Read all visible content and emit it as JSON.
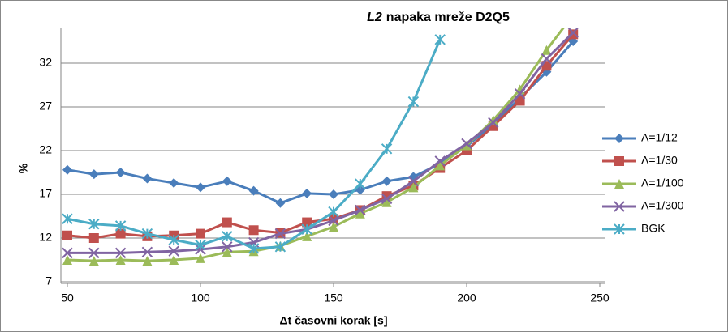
{
  "chart_data": {
    "type": "line",
    "title": [
      "L2",
      "napaka mreže D2Q5"
    ],
    "xlabel": "Δt časovni korak [s]",
    "ylabel": "%",
    "x": [
      50,
      60,
      70,
      80,
      90,
      100,
      110,
      120,
      130,
      140,
      150,
      160,
      170,
      180,
      190,
      200,
      210,
      220,
      230,
      240
    ],
    "series": [
      {
        "name": "Λ=1/12",
        "color": "#4a7ebb",
        "marker": "diamond",
        "values": [
          19.8,
          19.3,
          19.5,
          18.8,
          18.3,
          17.8,
          18.5,
          17.4,
          16.0,
          17.1,
          17.0,
          17.5,
          18.5,
          19.0,
          20.5,
          22.5,
          25.0,
          28.0,
          31.0,
          34.5
        ]
      },
      {
        "name": "Λ=1/30",
        "color": "#c0504d",
        "marker": "square",
        "values": [
          12.3,
          12.0,
          12.5,
          12.2,
          12.3,
          12.5,
          13.8,
          12.9,
          12.6,
          13.8,
          14.2,
          15.2,
          16.8,
          18.0,
          20.0,
          22.0,
          24.8,
          27.7,
          31.7,
          35.3
        ]
      },
      {
        "name": "Λ=1/100",
        "color": "#9bbb59",
        "marker": "triangle",
        "values": [
          9.5,
          9.4,
          9.5,
          9.4,
          9.5,
          9.7,
          10.4,
          10.5,
          11.1,
          12.2,
          13.3,
          14.8,
          16.1,
          17.8,
          20.3,
          22.6,
          25.5,
          29.0,
          33.5,
          37.5
        ]
      },
      {
        "name": "Λ=1/300",
        "color": "#8064a2",
        "marker": "x",
        "values": [
          10.3,
          10.3,
          10.3,
          10.4,
          10.5,
          10.7,
          11.0,
          11.5,
          12.5,
          13.0,
          14.0,
          15.2,
          16.5,
          18.5,
          20.8,
          22.8,
          25.2,
          28.5,
          32.5,
          35.5
        ]
      },
      {
        "name": "BGK",
        "color": "#4bacc6",
        "marker": "star",
        "values": [
          14.2,
          13.6,
          13.4,
          12.5,
          11.8,
          11.2,
          12.2,
          10.8,
          11.0,
          13.0,
          15.0,
          18.2,
          22.2,
          27.6,
          34.7,
          null,
          null,
          null,
          null,
          null
        ]
      }
    ],
    "xlim": [
      50,
      250
    ],
    "xticks": [
      50,
      100,
      150,
      200,
      250
    ],
    "ylim": [
      7,
      36
    ],
    "yticks": [
      7,
      12,
      17,
      22,
      27,
      32
    ],
    "grid": true,
    "legend": "right"
  }
}
